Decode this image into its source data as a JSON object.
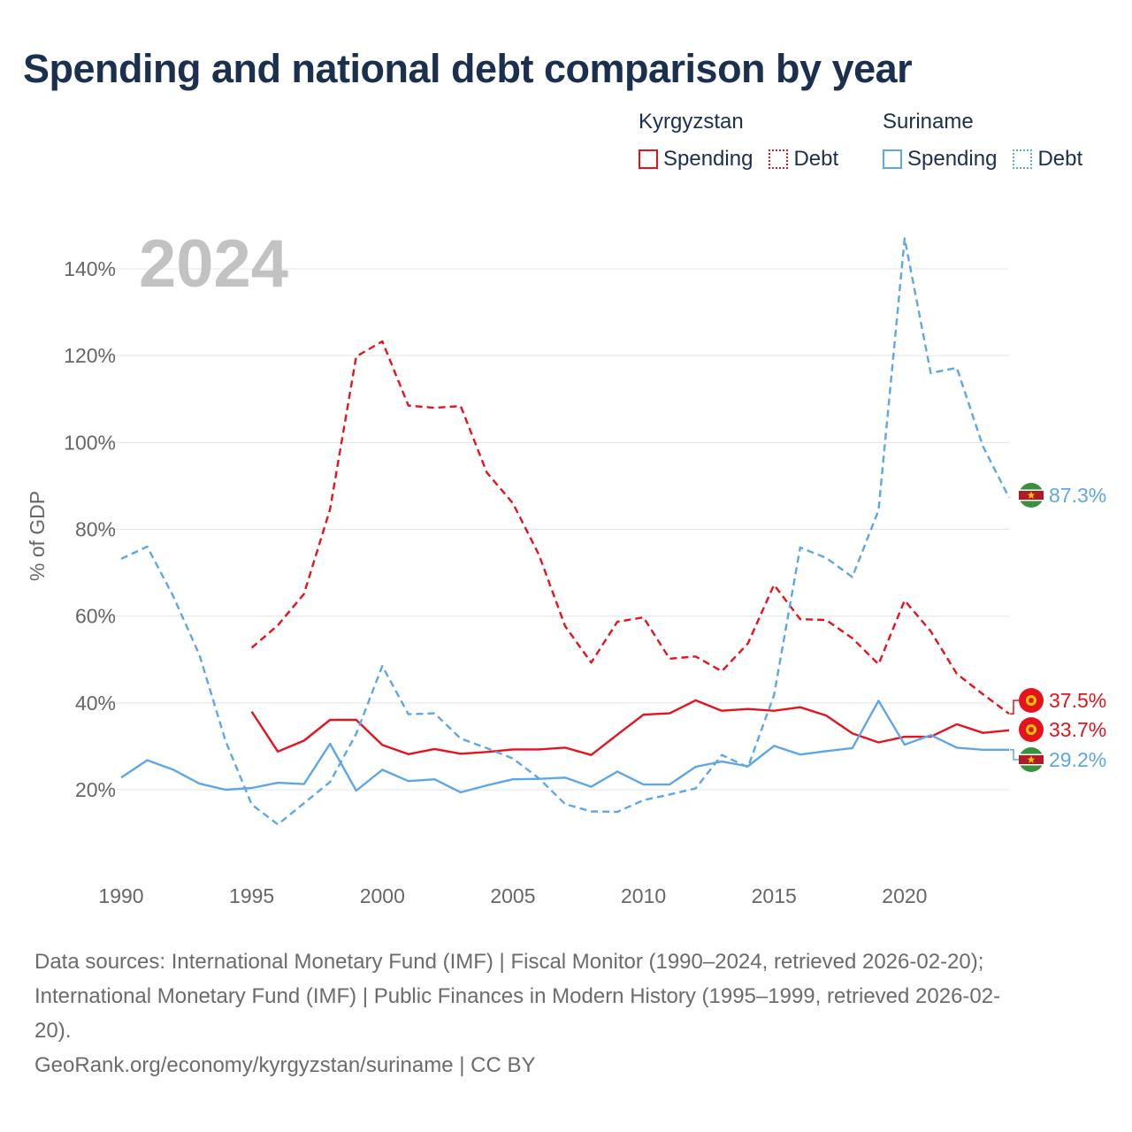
{
  "title": "Spending and national debt comparison by year",
  "legend": {
    "groups": [
      {
        "name": "Kyrgyzstan",
        "items": [
          {
            "label": "Spending",
            "style": "solid",
            "color": "#e3141e"
          },
          {
            "label": "Debt",
            "style": "dotted",
            "color": "#e3141e"
          }
        ]
      },
      {
        "name": "Suriname",
        "items": [
          {
            "label": "Spending",
            "style": "solid",
            "color": "#5ea7e6"
          },
          {
            "label": "Debt",
            "style": "dotted",
            "color": "#5ea7e6"
          }
        ]
      }
    ]
  },
  "year_label": "2024",
  "chart_data": {
    "type": "line",
    "title": "Spending and national debt comparison by year",
    "ylabel": "% of GDP",
    "xlabel": "",
    "xlim": [
      1990,
      2024
    ],
    "ylim": [
      0,
      150
    ],
    "x_ticks": [
      1990,
      1995,
      2000,
      2005,
      2010,
      2015,
      2020
    ],
    "y_ticks": [
      20,
      40,
      60,
      80,
      100,
      120,
      140
    ],
    "y_tick_labels": [
      "20%",
      "40%",
      "60%",
      "80%",
      "100%",
      "120%",
      "140%"
    ],
    "grid": true,
    "series": [
      {
        "name": "Kyrgyzstan Spending",
        "color": "#e3141e",
        "dash": "solid",
        "x": [
          1995,
          1996,
          1997,
          1998,
          1999,
          2000,
          2001,
          2002,
          2003,
          2004,
          2005,
          2006,
          2007,
          2008,
          2009,
          2010,
          2011,
          2012,
          2013,
          2014,
          2015,
          2016,
          2017,
          2018,
          2019,
          2020,
          2021,
          2022,
          2023,
          2024
        ],
        "values": [
          38.0,
          28.8,
          31.3,
          36.1,
          36.1,
          30.3,
          28.2,
          29.4,
          28.3,
          28.7,
          29.3,
          29.3,
          29.7,
          28.0,
          32.7,
          37.3,
          37.6,
          40.6,
          38.2,
          38.6,
          38.2,
          39.0,
          37.1,
          33.0,
          30.9,
          32.2,
          32.2,
          35.1,
          33.1,
          33.7
        ],
        "end_label": "33.7%"
      },
      {
        "name": "Kyrgyzstan Debt",
        "color": "#e3141e",
        "dash": "dashed",
        "x": [
          1995,
          1996,
          1997,
          1998,
          1999,
          2000,
          2001,
          2002,
          2003,
          2004,
          2005,
          2006,
          2007,
          2008,
          2009,
          2010,
          2011,
          2012,
          2013,
          2014,
          2015,
          2016,
          2017,
          2018,
          2019,
          2020,
          2021,
          2022,
          2023,
          2024
        ],
        "values": [
          52.7,
          57.9,
          65.1,
          84.6,
          119.8,
          123.3,
          108.5,
          108.0,
          108.4,
          93.1,
          86.0,
          74.1,
          57.7,
          49.3,
          58.7,
          59.7,
          50.2,
          50.7,
          47.3,
          53.7,
          67.2,
          59.3,
          59.1,
          54.9,
          48.9,
          63.6,
          56.5,
          46.7,
          42.0,
          37.5
        ],
        "end_label": "37.5%"
      },
      {
        "name": "Suriname Spending",
        "color": "#5ea7e6",
        "dash": "solid",
        "x": [
          1990,
          1991,
          1992,
          1993,
          1994,
          1995,
          1996,
          1997,
          1998,
          1999,
          2000,
          2001,
          2002,
          2003,
          2004,
          2005,
          2006,
          2007,
          2008,
          2009,
          2010,
          2011,
          2012,
          2013,
          2014,
          2015,
          2016,
          2017,
          2018,
          2019,
          2020,
          2021,
          2022,
          2023,
          2024
        ],
        "values": [
          22.8,
          26.8,
          24.6,
          21.4,
          20.0,
          20.4,
          21.6,
          21.3,
          30.6,
          19.8,
          24.6,
          22.0,
          22.4,
          19.4,
          21.0,
          22.4,
          22.5,
          22.8,
          20.7,
          24.2,
          21.2,
          21.2,
          25.3,
          26.5,
          25.4,
          30.1,
          28.1,
          28.9,
          29.6,
          40.5,
          30.4,
          32.6,
          29.7,
          29.2,
          29.2
        ],
        "end_label": "29.2%"
      },
      {
        "name": "Suriname Debt",
        "color": "#5ea7e6",
        "dash": "dashed",
        "x": [
          1990,
          1991,
          1992,
          1993,
          1994,
          1995,
          1996,
          1997,
          1998,
          1999,
          2000,
          2001,
          2002,
          2003,
          2004,
          2005,
          2006,
          2007,
          2008,
          2009,
          2010,
          2011,
          2012,
          2013,
          2014,
          2015,
          2016,
          2017,
          2018,
          2019,
          2020,
          2021,
          2022,
          2023,
          2024
        ],
        "values": [
          73.2,
          76.0,
          64.5,
          51.0,
          31.2,
          16.6,
          12.0,
          16.9,
          21.8,
          32.9,
          48.5,
          37.4,
          37.6,
          31.8,
          29.6,
          27.2,
          22.6,
          16.7,
          15.0,
          14.9,
          17.6,
          18.9,
          20.3,
          28.0,
          25.2,
          41.8,
          75.8,
          73.4,
          69.0,
          84.4,
          147.0,
          116.0,
          117.2,
          99.1,
          87.3
        ],
        "end_label": "87.3%"
      }
    ]
  },
  "footer": {
    "sources_line1": "Data sources: International Monetary Fund (IMF) | Fiscal Monitor (1990–2024, retrieved 2026-02-20);",
    "sources_line2": "International Monetary Fund (IMF) | Public Finances in Modern History (1995–1999, retrieved 2026-02-",
    "sources_line3": "20).",
    "credit": "GeoRank.org/economy/kyrgyzstan/suriname | CC BY"
  }
}
